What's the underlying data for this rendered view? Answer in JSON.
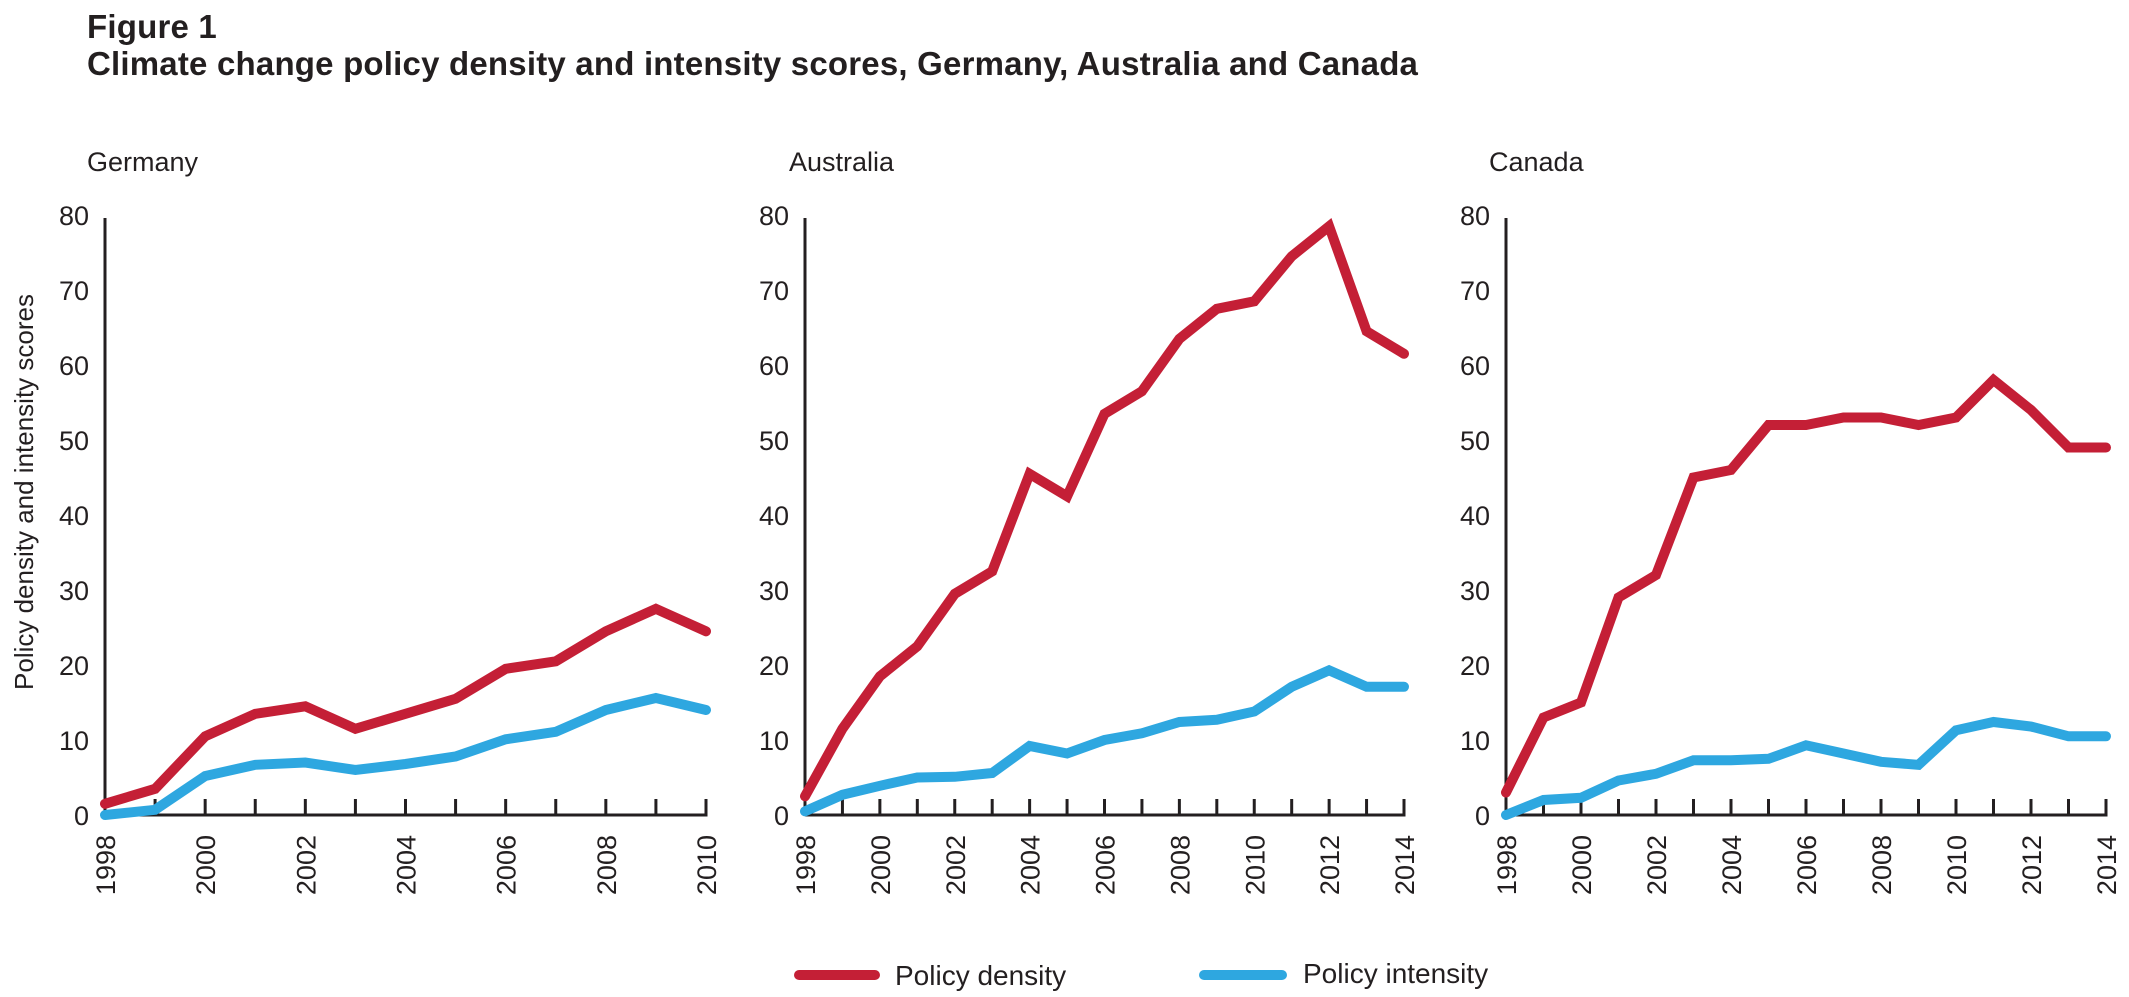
{
  "header": {
    "figure_label": "Figure 1",
    "title": "Climate change policy density and intensity scores, Germany, Australia and Canada"
  },
  "colors": {
    "density": "#c41f36",
    "intensity": "#2ea7e0",
    "axis": "#231f20"
  },
  "chart_data": [
    {
      "type": "line",
      "title": "Germany",
      "xlabel": "",
      "ylabel": "Policy density and intensity scores",
      "ylim": [
        0,
        80
      ],
      "yticks": [
        0,
        10,
        20,
        30,
        40,
        50,
        60,
        70,
        80
      ],
      "ytick_labels": [
        "0",
        "10",
        "20",
        "30",
        "40",
        "50",
        "60",
        "70",
        "80"
      ],
      "x": [
        1998,
        1999,
        2000,
        2001,
        2002,
        2003,
        2004,
        2005,
        2006,
        2007,
        2008,
        2009,
        2010
      ],
      "xtick_labels": [
        "1998",
        "2000",
        "2002",
        "2004",
        "2006",
        "2008",
        "2010"
      ],
      "grid": false,
      "series": [
        {
          "name": "Policy density",
          "values": [
            1.5,
            3.5,
            10.5,
            13.5,
            14.5,
            11.5,
            13.5,
            15.5,
            19.5,
            20.5,
            24.5,
            27.5,
            24.5
          ]
        },
        {
          "name": "Policy intensity",
          "values": [
            0,
            0.7,
            5.2,
            6.7,
            7.0,
            6.0,
            6.8,
            7.8,
            10.1,
            11.1,
            14.0,
            15.6,
            14.0
          ]
        }
      ]
    },
    {
      "type": "line",
      "title": "Australia",
      "xlabel": "",
      "ylabel": "",
      "ylim": [
        0,
        80
      ],
      "yticks": [
        0,
        10,
        20,
        30,
        40,
        50,
        60,
        70,
        80
      ],
      "ytick_labels": [
        "0",
        "10",
        "20",
        "30",
        "40",
        "50",
        "60",
        "70",
        "80"
      ],
      "x": [
        1998,
        1999,
        2000,
        2001,
        2002,
        2003,
        2004,
        2005,
        2006,
        2007,
        2008,
        2009,
        2010,
        2011,
        2012,
        2013,
        2014
      ],
      "xtick_labels": [
        "1998",
        "2000",
        "2002",
        "2004",
        "2006",
        "2008",
        "2010",
        "2012",
        "2014"
      ],
      "grid": false,
      "series": [
        {
          "name": "Policy density",
          "values": [
            2.5,
            11.5,
            18.5,
            22.5,
            29.5,
            32.5,
            45.5,
            42.5,
            53.5,
            56.5,
            63.5,
            67.5,
            68.5,
            74.5,
            78.5,
            64.5,
            61.5
          ]
        },
        {
          "name": "Policy intensity",
          "values": [
            0.5,
            2.7,
            3.9,
            5.0,
            5.1,
            5.6,
            9.2,
            8.2,
            10.0,
            10.9,
            12.4,
            12.7,
            13.8,
            17.1,
            19.3,
            17.1,
            17.1
          ]
        }
      ]
    },
    {
      "type": "line",
      "title": "Canada",
      "xlabel": "",
      "ylabel": "",
      "ylim": [
        0,
        80
      ],
      "yticks": [
        0,
        10,
        20,
        30,
        40,
        50,
        60,
        70,
        80
      ],
      "ytick_labels": [
        "0",
        "10",
        "20",
        "30",
        "40",
        "50",
        "60",
        "70",
        "80"
      ],
      "x": [
        1998,
        1999,
        2000,
        2001,
        2002,
        2003,
        2004,
        2005,
        2006,
        2007,
        2008,
        2009,
        2010,
        2011,
        2012,
        2013,
        2014
      ],
      "xtick_labels": [
        "1998",
        "2000",
        "2002",
        "2004",
        "2006",
        "2008",
        "2010",
        "2012",
        "2014"
      ],
      "grid": false,
      "series": [
        {
          "name": "Policy density",
          "values": [
            3,
            13,
            15,
            29,
            32,
            45,
            46,
            52,
            52,
            53,
            53,
            52,
            53,
            58,
            54,
            49,
            49
          ]
        },
        {
          "name": "Policy intensity",
          "values": [
            0,
            2.0,
            2.3,
            4.6,
            5.5,
            7.3,
            7.3,
            7.5,
            9.3,
            8.2,
            7.1,
            6.7,
            11.3,
            12.4,
            11.8,
            10.5,
            10.5
          ]
        }
      ]
    }
  ],
  "legend": {
    "placement": "bottom-center",
    "items": [
      {
        "label": "Policy density",
        "series": "density"
      },
      {
        "label": "Policy intensity",
        "series": "intensity"
      }
    ]
  }
}
